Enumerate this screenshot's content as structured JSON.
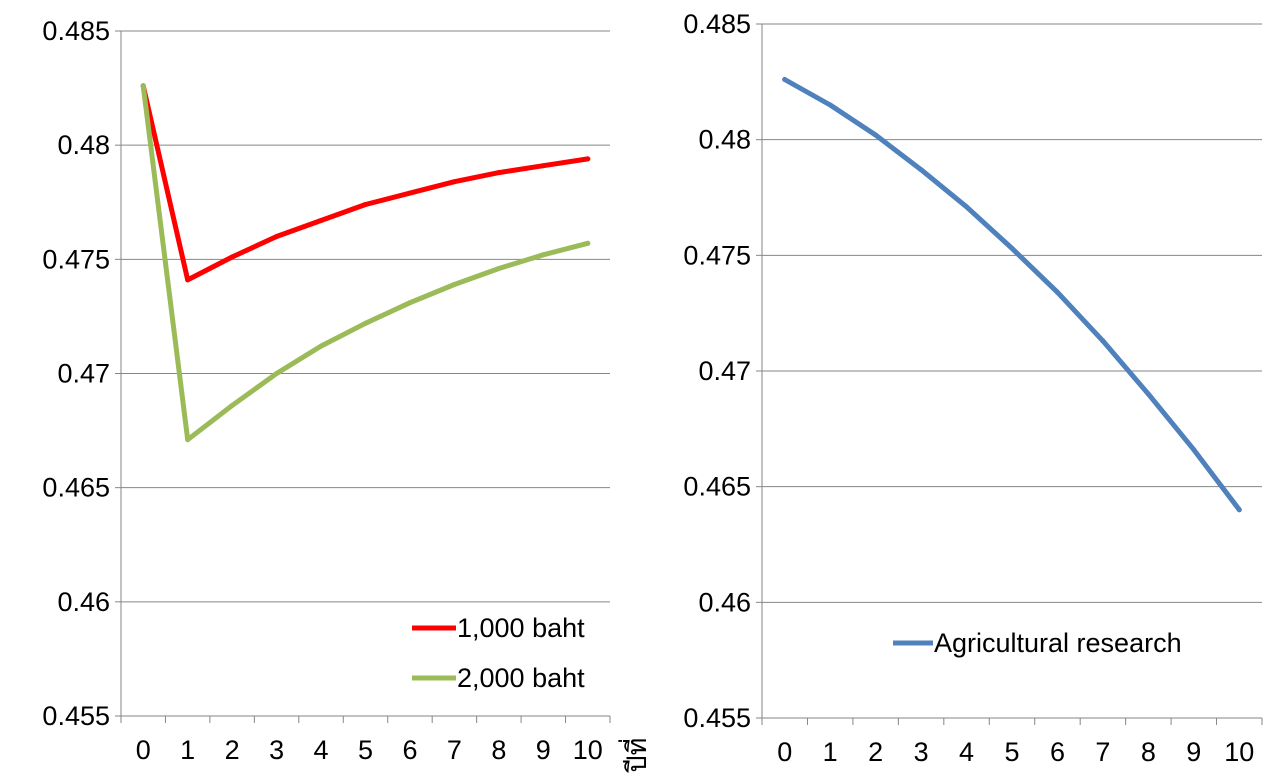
{
  "chart_data": [
    {
      "type": "line",
      "title": "",
      "xlabel": "ปีที่",
      "ylabel": "",
      "x": [
        0,
        1,
        2,
        3,
        4,
        5,
        6,
        7,
        8,
        9,
        10
      ],
      "ylim": [
        0.455,
        0.485
      ],
      "yticks": [
        "0.455",
        "0.46",
        "0.465",
        "0.47",
        "0.475",
        "0.48",
        "0.485"
      ],
      "xticks": [
        "0",
        "1",
        "2",
        "3",
        "4",
        "5",
        "6",
        "7",
        "8",
        "9",
        "10"
      ],
      "grid": "horizontal",
      "legend": "bottom-right",
      "series": [
        {
          "name": "1,000 baht",
          "color": "#ff0000",
          "values": [
            0.4826,
            0.4741,
            0.4751,
            0.476,
            0.4767,
            0.4774,
            0.4779,
            0.4784,
            0.4788,
            0.4791,
            0.4794
          ]
        },
        {
          "name": "2,000 baht",
          "color": "#9bbb59",
          "values": [
            0.4826,
            0.4671,
            0.4686,
            0.47,
            0.4712,
            0.4722,
            0.4731,
            0.4739,
            0.4746,
            0.4752,
            0.4757
          ]
        }
      ]
    },
    {
      "type": "line",
      "title": "",
      "xlabel": "",
      "ylabel": "",
      "x": [
        0,
        1,
        2,
        3,
        4,
        5,
        6,
        7,
        8,
        9,
        10
      ],
      "ylim": [
        0.455,
        0.485
      ],
      "yticks": [
        "0.455",
        "0.46",
        "0.465",
        "0.47",
        "0.475",
        "0.48",
        "0.485"
      ],
      "xticks": [
        "0",
        "1",
        "2",
        "3",
        "4",
        "5",
        "6",
        "7",
        "8",
        "9",
        "10"
      ],
      "grid": "horizontal",
      "legend": "bottom-right",
      "series": [
        {
          "name": "Agricultural research",
          "color": "#4f81bd",
          "values": [
            0.4826,
            0.4815,
            0.4802,
            0.4787,
            0.4771,
            0.4753,
            0.4734,
            0.4713,
            0.469,
            0.4666,
            0.464
          ]
        }
      ]
    }
  ]
}
